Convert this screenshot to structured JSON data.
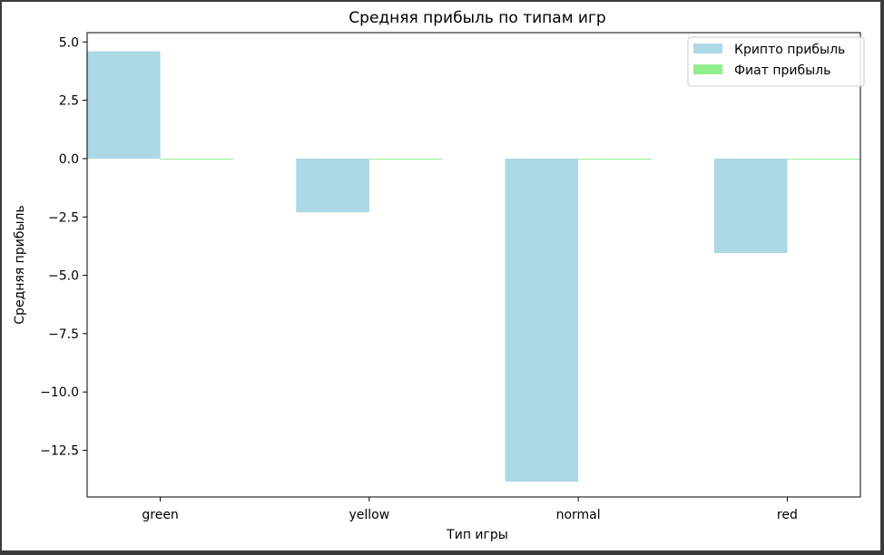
{
  "chart_data": {
    "type": "bar",
    "title": "Средняя прибыль по типам игр",
    "xlabel": "Тип игры",
    "ylabel": "Средняя прибыль",
    "categories": [
      "green",
      "yellow",
      "normal",
      "red"
    ],
    "series": [
      {
        "name": "Крипто прибыль",
        "color": "#add8e6",
        "values": [
          4.6,
          -2.3,
          -13.85,
          -4.05
        ]
      },
      {
        "name": "Фиат прибыль",
        "color": "#90ee90",
        "values": [
          0.0,
          0.0,
          0.0,
          0.0
        ]
      }
    ],
    "ylim": [
      -14.5,
      5.4
    ],
    "yticks": [
      5.0,
      2.5,
      0.0,
      -2.5,
      -5.0,
      -7.5,
      -10.0,
      -12.5
    ],
    "ytick_labels": [
      "5.0",
      "2.5",
      "0.0",
      "−2.5",
      "−5.0",
      "−7.5",
      "−10.0",
      "−12.5"
    ],
    "grid": false,
    "legend_position": "top-right"
  }
}
